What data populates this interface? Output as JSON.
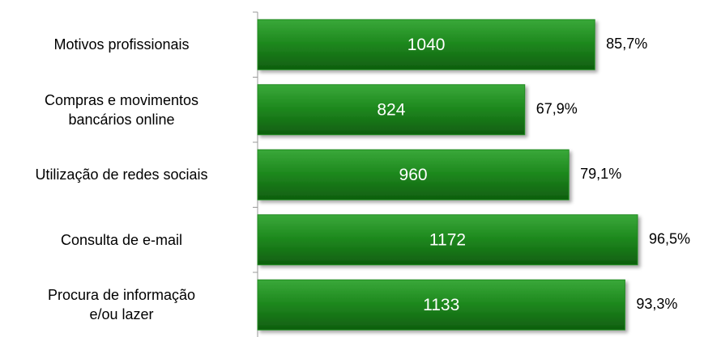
{
  "chart_data": {
    "type": "bar",
    "orientation": "horizontal",
    "categories": [
      "Motivos profissionais",
      "Compras e movimentos\nbancários online",
      "Utilização de redes sociais",
      "Consulta de e-mail",
      "Procura de informação\ne/ou lazer"
    ],
    "values": [
      1040,
      824,
      960,
      1172,
      1133
    ],
    "percentages": [
      85.7,
      67.9,
      79.1,
      96.5,
      93.3
    ],
    "percentage_labels": [
      "85,7%",
      "67,9%",
      "79,1%",
      "96,5%",
      "93,3%"
    ],
    "color": "#228b22"
  }
}
